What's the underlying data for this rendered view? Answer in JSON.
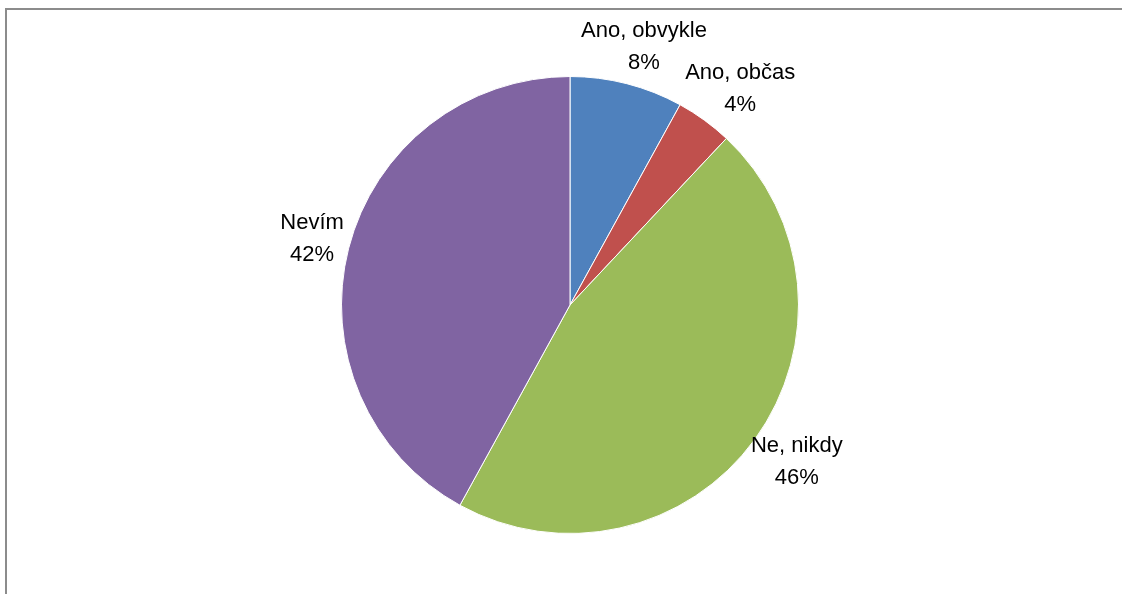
{
  "chart_data": {
    "type": "pie",
    "categories": [
      "Ano, obvykle",
      "Ano, občas",
      "Ne, nikdy",
      "Nevím"
    ],
    "values": [
      8,
      4,
      46,
      42
    ],
    "value_labels": [
      "8%",
      "4%",
      "46%",
      "42%"
    ],
    "colors": [
      "#4f81bd",
      "#c0504d",
      "#9bbb59",
      "#8064a2"
    ]
  }
}
